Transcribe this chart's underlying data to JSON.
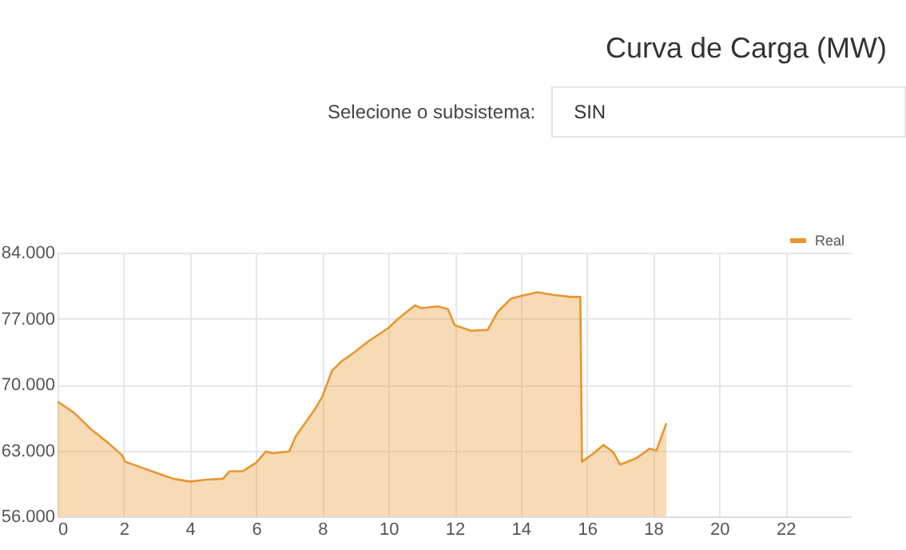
{
  "chart_data": {
    "type": "area",
    "title": "Curva de Carga (MW)",
    "annotations": [
      "Selecione o subsistema:",
      "SIN"
    ],
    "xlim": [
      0,
      24
    ],
    "xticks": [
      0,
      2,
      4,
      6,
      8,
      10,
      12,
      14,
      16,
      18,
      20,
      22
    ],
    "ylim": [
      56000,
      84000
    ],
    "yticks": [
      {
        "value": 56000,
        "label": "56.000"
      },
      {
        "value": 63000,
        "label": "63.000"
      },
      {
        "value": 70000,
        "label": "70.000"
      },
      {
        "value": 77000,
        "label": "77.000"
      },
      {
        "value": 84000,
        "label": "84.000"
      }
    ],
    "grid": true,
    "legend": "top right",
    "series": [
      {
        "name": "Real",
        "color": "#e8962f",
        "x": [
          0,
          0.5,
          1,
          1.5,
          1.95,
          2.05,
          3,
          3.5,
          4,
          4.5,
          5,
          5.2,
          5.6,
          6,
          6.3,
          6.5,
          7,
          7.2,
          7.5,
          7.8,
          8,
          8.3,
          8.6,
          9,
          9.4,
          9.7,
          10,
          10.3,
          10.8,
          11,
          11.5,
          11.8,
          12,
          12.5,
          13,
          13.3,
          13.7,
          14,
          14.5,
          15,
          15.5,
          15.8,
          15.85,
          16.2,
          16.5,
          16.8,
          17,
          17.5,
          17.9,
          18.1,
          18.4
        ],
        "values": [
          68200,
          67000,
          65300,
          63900,
          62500,
          61800,
          60600,
          60000,
          59700,
          59900,
          60000,
          60800,
          60800,
          61700,
          62900,
          62700,
          62900,
          64500,
          66000,
          67500,
          68700,
          71500,
          72500,
          73500,
          74600,
          75300,
          76000,
          77000,
          78400,
          78100,
          78300,
          78000,
          76300,
          75700,
          75800,
          77700,
          79100,
          79400,
          79800,
          79500,
          79300,
          79300,
          61800,
          62700,
          63600,
          62800,
          61500,
          62200,
          63200,
          63000,
          65900
        ]
      }
    ]
  }
}
